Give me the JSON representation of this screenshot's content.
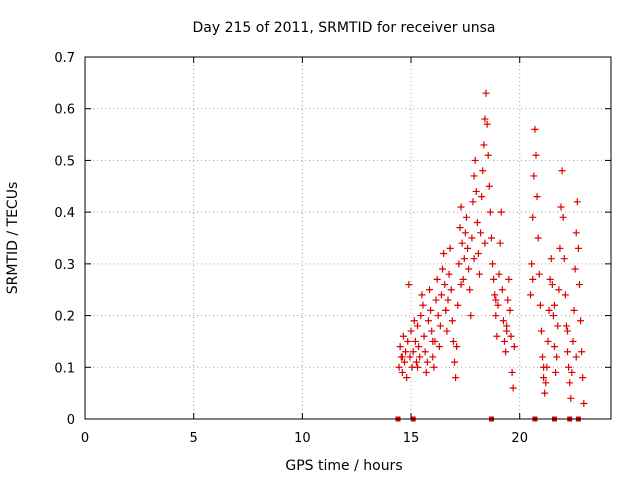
{
  "chart_data": {
    "type": "scatter",
    "title": "Day 215 of 2011, SRMTID for receiver unsa",
    "xlabel": "GPS time / hours",
    "ylabel": "SRMTID / TECUs",
    "xlim": [
      0,
      24.2
    ],
    "ylim": [
      0,
      0.7
    ],
    "x_ticks": [
      0,
      5,
      10,
      15,
      20
    ],
    "x_tick_labels": [
      "0",
      "5",
      "10",
      "15",
      "20"
    ],
    "y_ticks": [
      0,
      0.1,
      0.2,
      0.3,
      0.4,
      0.5,
      0.6,
      0.7
    ],
    "y_tick_labels": [
      "0",
      "0.1",
      "0.2",
      "0.3",
      "0.4",
      "0.5",
      "0.6",
      "0.7"
    ],
    "grid": true,
    "legend": "none",
    "marker": "plus",
    "color": "#dd0000",
    "zero_markers_x": [
      14.4,
      15.1,
      18.7,
      20.7,
      21.6,
      22.3,
      22.7
    ],
    "series": [
      {
        "name": "SRMTID",
        "points": [
          [
            14.45,
            0.1
          ],
          [
            14.5,
            0.14
          ],
          [
            14.55,
            0.12
          ],
          [
            14.6,
            0.09
          ],
          [
            14.65,
            0.16
          ],
          [
            14.7,
            0.11
          ],
          [
            14.75,
            0.13
          ],
          [
            14.8,
            0.08
          ],
          [
            14.85,
            0.15
          ],
          [
            14.9,
            0.26
          ],
          [
            14.95,
            0.12
          ],
          [
            15.0,
            0.17
          ],
          [
            15.05,
            0.1
          ],
          [
            15.1,
            0.13
          ],
          [
            15.15,
            0.19
          ],
          [
            15.2,
            0.15
          ],
          [
            15.25,
            0.11
          ],
          [
            15.3,
            0.18
          ],
          [
            15.35,
            0.14
          ],
          [
            15.4,
            0.12
          ],
          [
            15.45,
            0.2
          ],
          [
            15.5,
            0.24
          ],
          [
            15.55,
            0.22
          ],
          [
            15.6,
            0.16
          ],
          [
            15.65,
            0.13
          ],
          [
            15.7,
            0.09
          ],
          [
            15.75,
            0.11
          ],
          [
            15.8,
            0.19
          ],
          [
            15.85,
            0.25
          ],
          [
            15.9,
            0.21
          ],
          [
            15.95,
            0.17
          ],
          [
            16.0,
            0.12
          ],
          [
            16.05,
            0.1
          ],
          [
            16.1,
            0.15
          ],
          [
            16.15,
            0.23
          ],
          [
            16.2,
            0.27
          ],
          [
            16.25,
            0.2
          ],
          [
            16.3,
            0.14
          ],
          [
            16.35,
            0.18
          ],
          [
            16.4,
            0.24
          ],
          [
            16.45,
            0.29
          ],
          [
            16.5,
            0.32
          ],
          [
            16.55,
            0.26
          ],
          [
            16.6,
            0.21
          ],
          [
            16.65,
            0.17
          ],
          [
            16.7,
            0.23
          ],
          [
            16.75,
            0.28
          ],
          [
            16.8,
            0.33
          ],
          [
            16.85,
            0.25
          ],
          [
            16.9,
            0.19
          ],
          [
            16.95,
            0.15
          ],
          [
            17.0,
            0.11
          ],
          [
            17.05,
            0.08
          ],
          [
            17.1,
            0.14
          ],
          [
            17.15,
            0.22
          ],
          [
            17.2,
            0.3
          ],
          [
            17.25,
            0.37
          ],
          [
            17.3,
            0.41
          ],
          [
            17.35,
            0.34
          ],
          [
            17.4,
            0.27
          ],
          [
            17.45,
            0.31
          ],
          [
            17.5,
            0.36
          ],
          [
            17.55,
            0.39
          ],
          [
            17.6,
            0.33
          ],
          [
            17.65,
            0.29
          ],
          [
            17.7,
            0.25
          ],
          [
            17.75,
            0.2
          ],
          [
            17.8,
            0.35
          ],
          [
            17.85,
            0.42
          ],
          [
            17.9,
            0.47
          ],
          [
            17.95,
            0.5
          ],
          [
            18.0,
            0.44
          ],
          [
            18.05,
            0.38
          ],
          [
            18.1,
            0.32
          ],
          [
            18.15,
            0.28
          ],
          [
            18.2,
            0.36
          ],
          [
            18.25,
            0.43
          ],
          [
            18.3,
            0.48
          ],
          [
            18.35,
            0.53
          ],
          [
            18.4,
            0.58
          ],
          [
            18.45,
            0.63
          ],
          [
            18.5,
            0.57
          ],
          [
            18.55,
            0.51
          ],
          [
            18.6,
            0.45
          ],
          [
            18.65,
            0.4
          ],
          [
            18.7,
            0.35
          ],
          [
            18.75,
            0.3
          ],
          [
            18.8,
            0.27
          ],
          [
            18.85,
            0.24
          ],
          [
            18.9,
            0.2
          ],
          [
            18.95,
            0.16
          ],
          [
            19.0,
            0.22
          ],
          [
            19.05,
            0.28
          ],
          [
            19.1,
            0.34
          ],
          [
            19.15,
            0.4
          ],
          [
            19.2,
            0.25
          ],
          [
            19.25,
            0.19
          ],
          [
            19.3,
            0.15
          ],
          [
            19.35,
            0.13
          ],
          [
            19.4,
            0.18
          ],
          [
            19.45,
            0.23
          ],
          [
            19.5,
            0.27
          ],
          [
            19.55,
            0.21
          ],
          [
            19.6,
            0.16
          ],
          [
            19.65,
            0.09
          ],
          [
            19.7,
            0.06
          ],
          [
            19.75,
            0.14
          ],
          [
            20.5,
            0.24
          ],
          [
            20.55,
            0.3
          ],
          [
            20.6,
            0.39
          ],
          [
            20.65,
            0.47
          ],
          [
            20.7,
            0.56
          ],
          [
            20.75,
            0.51
          ],
          [
            20.8,
            0.43
          ],
          [
            20.85,
            0.35
          ],
          [
            20.9,
            0.28
          ],
          [
            20.95,
            0.22
          ],
          [
            21.0,
            0.17
          ],
          [
            21.05,
            0.12
          ],
          [
            21.1,
            0.08
          ],
          [
            21.15,
            0.05
          ],
          [
            21.2,
            0.07
          ],
          [
            21.25,
            0.1
          ],
          [
            21.3,
            0.15
          ],
          [
            21.35,
            0.21
          ],
          [
            21.4,
            0.27
          ],
          [
            21.45,
            0.31
          ],
          [
            21.5,
            0.26
          ],
          [
            21.55,
            0.2
          ],
          [
            21.6,
            0.14
          ],
          [
            21.65,
            0.09
          ],
          [
            21.7,
            0.12
          ],
          [
            21.75,
            0.18
          ],
          [
            21.8,
            0.25
          ],
          [
            21.85,
            0.33
          ],
          [
            21.9,
            0.41
          ],
          [
            21.95,
            0.48
          ],
          [
            22.0,
            0.39
          ],
          [
            22.05,
            0.31
          ],
          [
            22.1,
            0.24
          ],
          [
            22.15,
            0.18
          ],
          [
            22.2,
            0.13
          ],
          [
            22.25,
            0.1
          ],
          [
            22.3,
            0.07
          ],
          [
            22.35,
            0.04
          ],
          [
            22.4,
            0.09
          ],
          [
            22.45,
            0.15
          ],
          [
            22.5,
            0.21
          ],
          [
            22.55,
            0.29
          ],
          [
            22.6,
            0.36
          ],
          [
            22.65,
            0.42
          ],
          [
            22.7,
            0.33
          ],
          [
            22.75,
            0.26
          ],
          [
            22.8,
            0.19
          ],
          [
            22.85,
            0.13
          ],
          [
            22.9,
            0.08
          ],
          [
            22.95,
            0.03
          ],
          [
            14.6,
            0.12
          ],
          [
            15.3,
            0.1
          ],
          [
            16.0,
            0.15
          ],
          [
            16.6,
            0.21
          ],
          [
            17.3,
            0.26
          ],
          [
            17.9,
            0.31
          ],
          [
            18.4,
            0.34
          ],
          [
            18.9,
            0.23
          ],
          [
            19.4,
            0.17
          ],
          [
            20.6,
            0.27
          ],
          [
            21.1,
            0.1
          ],
          [
            21.6,
            0.22
          ],
          [
            22.2,
            0.17
          ],
          [
            22.6,
            0.12
          ]
        ]
      }
    ]
  }
}
